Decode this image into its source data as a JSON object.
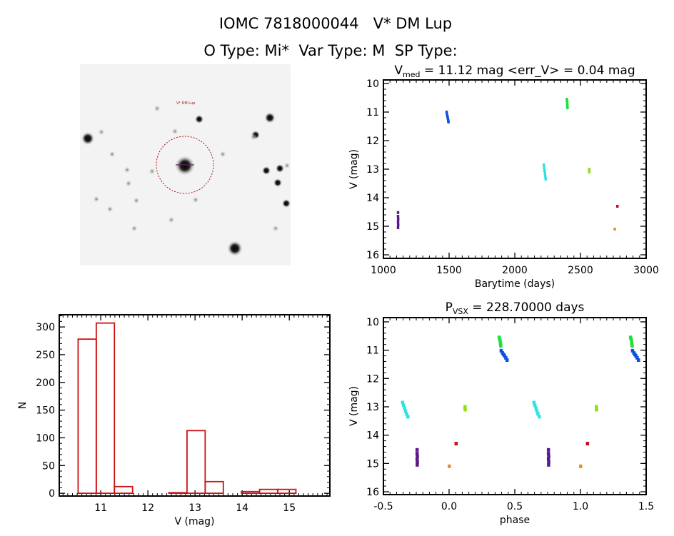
{
  "header": {
    "title": "IOMC 7818000044   V* DM Lup",
    "subtitle": "O Type: Mi*  Var Type: M  SP Type:"
  },
  "finder_image": {
    "target_label": "V* DM Lup"
  },
  "chart_data": [
    {
      "type": "scatter",
      "title_main": "V",
      "title_sub": "med",
      "title_rest": " = 11.12 mag <err_V> = 0.04 mag",
      "xlabel": "Barytime (days)",
      "ylabel": "V (mag)",
      "xlim": [
        1000,
        3000
      ],
      "ylim": [
        16.125,
        9.875
      ],
      "xticks": [
        "1000",
        "1500",
        "2000",
        "2500",
        "3000"
      ],
      "xtick_values": [
        1000,
        1500,
        2000,
        2500,
        3000
      ],
      "yticks": [
        "10",
        "11",
        "12",
        "13",
        "14",
        "15",
        "16"
      ],
      "ytick_values": [
        10,
        11,
        12,
        13,
        14,
        15,
        16
      ],
      "series": [
        {
          "name": "season-1",
          "color": "#5a1a8a",
          "points": [
            [
              1110,
              14.52
            ],
            [
              1110,
              14.65
            ],
            [
              1111,
              14.75
            ],
            [
              1110,
              14.85
            ],
            [
              1111,
              14.95
            ],
            [
              1110,
              15.05
            ]
          ]
        },
        {
          "name": "season-2",
          "color": "#1050e0",
          "points": [
            [
              1480,
              11.0
            ],
            [
              1483,
              11.08
            ],
            [
              1486,
              11.15
            ],
            [
              1489,
              11.22
            ],
            [
              1492,
              11.3
            ],
            [
              1494,
              11.35
            ]
          ]
        },
        {
          "name": "season-3",
          "color": "#30e0e8",
          "points": [
            [
              2220,
              12.85
            ],
            [
              2222,
              12.95
            ],
            [
              2225,
              13.05
            ],
            [
              2228,
              13.15
            ],
            [
              2231,
              13.25
            ],
            [
              2234,
              13.35
            ]
          ]
        },
        {
          "name": "season-4",
          "color": "#20e040",
          "points": [
            [
              2395,
              10.55
            ],
            [
              2397,
              10.62
            ],
            [
              2398,
              10.7
            ],
            [
              2399,
              10.78
            ],
            [
              2400,
              10.85
            ]
          ]
        },
        {
          "name": "season-5",
          "color": "#90e020",
          "points": [
            [
              2565,
              13.0
            ],
            [
              2565,
              13.05
            ],
            [
              2566,
              13.1
            ]
          ]
        },
        {
          "name": "season-6",
          "color": "#c01020",
          "points": [
            [
              2780,
              14.3
            ]
          ]
        },
        {
          "name": "season-7",
          "color": "#e09030",
          "points": [
            [
              2760,
              15.1
            ]
          ]
        }
      ]
    },
    {
      "type": "scatter",
      "title_main": "P",
      "title_sub": "VSX",
      "title_rest": " = 228.70000 days",
      "xlabel": "phase",
      "ylabel": "V (mag)",
      "xlim": [
        -0.5,
        1.5
      ],
      "ylim": [
        16.1,
        9.85
      ],
      "xticks": [
        "-0.5",
        "0.0",
        "0.5",
        "1.0",
        "1.5"
      ],
      "xtick_values": [
        -0.5,
        0.0,
        0.5,
        1.0,
        1.5
      ],
      "yticks": [
        "10",
        "11",
        "12",
        "13",
        "14",
        "15",
        "16"
      ],
      "ytick_values": [
        10,
        11,
        12,
        13,
        14,
        15,
        16
      ],
      "period_days": 228.7,
      "series": [
        {
          "name": "season-1",
          "color": "#5a1a8a",
          "points": [
            [
              -0.245,
              14.52
            ],
            [
              -0.245,
              14.65
            ],
            [
              -0.243,
              14.75
            ],
            [
              -0.245,
              14.85
            ],
            [
              -0.243,
              14.95
            ],
            [
              -0.244,
              15.05
            ]
          ]
        },
        {
          "name": "season-2",
          "color": "#1050e0",
          "points": [
            [
              0.395,
              11.02
            ],
            [
              0.405,
              11.1
            ],
            [
              0.413,
              11.15
            ],
            [
              0.42,
              11.2
            ],
            [
              0.43,
              11.27
            ],
            [
              0.44,
              11.35
            ]
          ]
        },
        {
          "name": "season-3",
          "color": "#30e0e8",
          "points": [
            [
              -0.355,
              12.85
            ],
            [
              -0.348,
              12.95
            ],
            [
              -0.34,
              13.05
            ],
            [
              -0.333,
              13.15
            ],
            [
              -0.325,
              13.25
            ],
            [
              -0.315,
              13.35
            ]
          ]
        },
        {
          "name": "season-4",
          "color": "#20e040",
          "points": [
            [
              0.38,
              10.55
            ],
            [
              0.385,
              10.62
            ],
            [
              0.388,
              10.7
            ],
            [
              0.39,
              10.78
            ],
            [
              0.392,
              10.85
            ]
          ]
        },
        {
          "name": "season-5",
          "color": "#90e020",
          "points": [
            [
              0.12,
              13.0
            ],
            [
              0.12,
              13.05
            ],
            [
              0.121,
              13.1
            ]
          ]
        },
        {
          "name": "season-6",
          "color": "#c01020",
          "points": [
            [
              0.052,
              14.3
            ]
          ]
        },
        {
          "name": "season-7",
          "color": "#e09030",
          "points": [
            [
              0.0,
              15.1
            ]
          ]
        }
      ]
    },
    {
      "type": "bar",
      "subtype": "histogram",
      "xlabel": "V (mag)",
      "ylabel": "N",
      "xlim": [
        10.12,
        15.86
      ],
      "ylim": [
        -5,
        322
      ],
      "xticks": [
        "11",
        "12",
        "13",
        "14",
        "15"
      ],
      "xtick_values": [
        11,
        12,
        13,
        14,
        15
      ],
      "yticks": [
        "0",
        "50",
        "100",
        "150",
        "200",
        "250",
        "300"
      ],
      "ytick_values": [
        0,
        50,
        100,
        150,
        200,
        250,
        300
      ],
      "bin_start": 10.52,
      "bin_width": 0.385,
      "values": [
        278,
        307,
        12,
        0,
        0,
        1,
        113,
        21,
        0,
        3,
        7,
        7
      ],
      "color": "#cc1111"
    }
  ]
}
